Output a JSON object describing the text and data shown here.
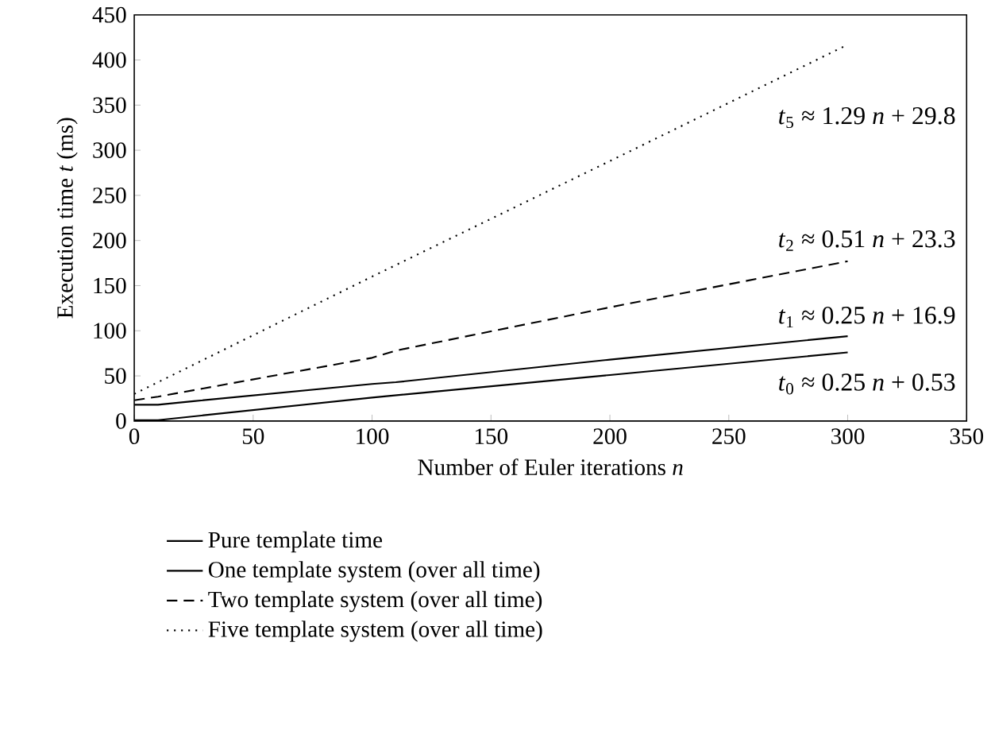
{
  "chart_data": {
    "type": "line",
    "xlabel": "Number of Euler iterations *n*",
    "ylabel": "Execution time *t* (ms)",
    "xlim": [
      0,
      350
    ],
    "ylim": [
      0,
      450
    ],
    "xticks": [
      0,
      50,
      100,
      150,
      200,
      250,
      300,
      350
    ],
    "yticks": [
      0,
      50,
      100,
      150,
      200,
      250,
      300,
      350,
      400,
      450
    ],
    "grid": false,
    "marker": "none",
    "legend": "bottom",
    "series": [
      {
        "name": "Pure template time",
        "color": "#000000",
        "line_style": "solid",
        "x": [
          0,
          10,
          100,
          200,
          300
        ],
        "values": [
          1,
          1,
          26,
          51,
          76
        ]
      },
      {
        "name": "One template system (over all time)",
        "color": "#000000",
        "line_style": "solid",
        "x": [
          0,
          10,
          25,
          100,
          110,
          200,
          300
        ],
        "values": [
          18,
          18,
          22,
          41,
          43,
          68,
          94
        ]
      },
      {
        "name": "Two template system (over all time)",
        "color": "#000000",
        "line_style": "dashed",
        "x": [
          0,
          10,
          100,
          110,
          200,
          300
        ],
        "values": [
          23,
          27,
          70,
          78,
          126,
          177
        ]
      },
      {
        "name": "Five template system (over all time)",
        "color": "#000000",
        "line_style": "dotted",
        "x": [
          0,
          100,
          200,
          300
        ],
        "values": [
          30,
          160,
          288,
          417
        ]
      }
    ],
    "annotations": [
      "*t*$_{5}$ ≈ 1.29 *n* + 29.8",
      "*t*$_{2}$ ≈ 0.51 *n* + 23.3",
      "*t*$_{1}$ ≈ 0.25 *n* + 16.9",
      "*t*$_{0}$ ≈ 0.25 *n* + 0.53"
    ]
  }
}
